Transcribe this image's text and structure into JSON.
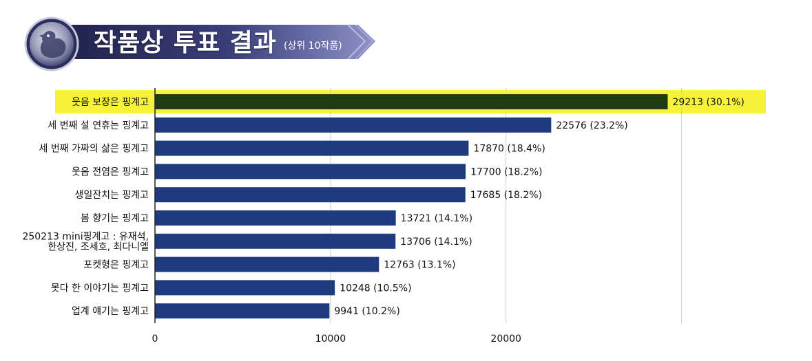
{
  "header": {
    "title": "작품상 투표 결과",
    "subtitle": "(상위 10작품)",
    "emblem": "rooster-icon"
  },
  "colors": {
    "bar": "#1f3b7f",
    "highlight_bar": "#1f3b10",
    "highlight_bg": "#f7f23a",
    "grid": "#d0d0d0",
    "banner_dark": "#2c2f5e",
    "banner_light": "#6a6fa8"
  },
  "chart_data": {
    "type": "bar",
    "orientation": "horizontal",
    "title": "작품상 투표 결과 (상위 10작품)",
    "xlabel": "",
    "ylabel": "",
    "xlim": [
      0,
      33000
    ],
    "x_ticks": [
      0,
      10000,
      20000
    ],
    "grid": true,
    "highlight_index": 0,
    "categories": [
      [
        "웃음 보장은 핑계고"
      ],
      [
        "세 번째 설 연휴는 핑계고"
      ],
      [
        "세 번째 가짜의 삶은 핑계고"
      ],
      [
        "웃음 전염은 핑계고"
      ],
      [
        "생일잔치는 핑계고"
      ],
      [
        "봄 향기는 핑계고"
      ],
      [
        "250213 mini핑계고 : 유재석,",
        "한상진, 조세호, 최다니엘"
      ],
      [
        "포켓형은 핑계고"
      ],
      [
        "못다 한 이야기는 핑계고"
      ],
      [
        "업계 얘기는 핑계고"
      ]
    ],
    "values": [
      29213,
      22576,
      17870,
      17700,
      17685,
      13721,
      13706,
      12763,
      10248,
      9941
    ],
    "value_labels": [
      "29213 (30.1%)",
      "22576 (23.2%)",
      "17870 (18.4%)",
      "17700 (18.2%)",
      "17685 (18.2%)",
      "13721 (14.1%)",
      "13706 (14.1%)",
      "12763 (13.1%)",
      "10248 (10.5%)",
      "9941 (10.2%)"
    ]
  }
}
